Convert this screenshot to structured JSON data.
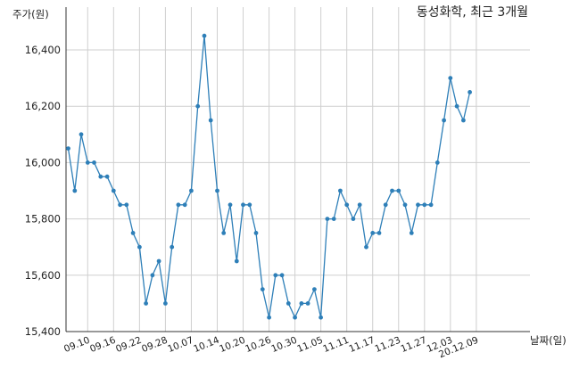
{
  "chart_data": {
    "type": "line",
    "title": "동성화학, 최근 3개월",
    "ylabel": "주가(원)",
    "xlabel": "날짜(일)",
    "ylim": [
      15400,
      16500
    ],
    "yticks": [
      15400,
      15600,
      15800,
      16000,
      16200,
      16400
    ],
    "ytick_labels": [
      "15,400",
      "15,600",
      "15,800",
      "16,000",
      "16,200",
      "16,400"
    ],
    "x_tick_labels": [
      "09.10",
      "09.16",
      "09.22",
      "09.28",
      "10.07",
      "10.14",
      "10.20",
      "10.26",
      "10.30",
      "11.05",
      "11.11",
      "11.17",
      "11.23",
      "11.27",
      "12.03",
      "20.12.09"
    ],
    "x_tick_positions": [
      3,
      7,
      11,
      15,
      19,
      23,
      27,
      31,
      35,
      39,
      43,
      47,
      51,
      55,
      59,
      63
    ],
    "grid": true,
    "line_color": "#2e7fb8",
    "values": [
      16050,
      15900,
      16100,
      16000,
      16000,
      15950,
      15950,
      15900,
      15850,
      15850,
      15750,
      15700,
      15500,
      15600,
      15650,
      15500,
      15700,
      15850,
      15850,
      15900,
      16200,
      16450,
      16150,
      15900,
      15750,
      15850,
      15650,
      15850,
      15850,
      15750,
      15550,
      15450,
      15600,
      15600,
      15500,
      15450,
      15500,
      15500,
      15550,
      15450,
      15800,
      15800,
      15900,
      15850,
      15800,
      15850,
      15700,
      15750,
      15750,
      15850,
      15900,
      15900,
      15850,
      15750,
      15850,
      15850,
      15850,
      16000,
      16150,
      16300,
      16200,
      16150,
      16250
    ]
  }
}
